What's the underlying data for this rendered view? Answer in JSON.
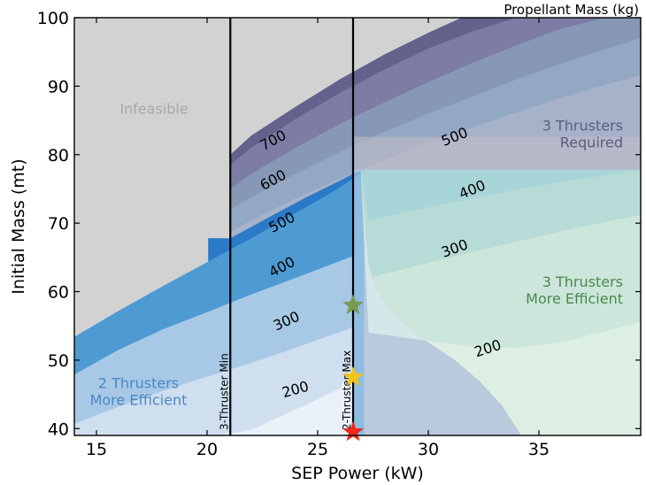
{
  "chart_data": {
    "type": "area",
    "xlabel": "SEP Power (kW)",
    "ylabel": "Initial Mass (mt)",
    "xlim": [
      14,
      39.6
    ],
    "ylim": [
      39,
      100
    ],
    "xticks": [
      15,
      20,
      25,
      30,
      35
    ],
    "yticks": [
      40,
      50,
      60,
      70,
      80,
      90,
      100
    ],
    "grid": false,
    "top_note": "Propellant Mass (kg)",
    "vertical_lines": [
      {
        "x": 21.05,
        "label": "3-Thruster Min"
      },
      {
        "x": 26.6,
        "label": "2-Thruster Max"
      }
    ],
    "region_labels": [
      {
        "text": [
          "Infeasible"
        ],
        "x": 17.6,
        "y": 86,
        "color": "#a8a8a8",
        "anchor": "middle"
      },
      {
        "text": [
          "3 Thrusters",
          "Required"
        ],
        "x": 38.8,
        "y": 83.5,
        "color": "#5c5c80",
        "anchor": "end"
      },
      {
        "text": [
          "3 Thrusters",
          "More Efficient"
        ],
        "x": 38.8,
        "y": 60.7,
        "color": "#4a8a4a",
        "anchor": "end"
      },
      {
        "text": [
          "2 Thrusters",
          "More Efficient"
        ],
        "x": 16.9,
        "y": 45.9,
        "color": "#4a86c6",
        "anchor": "middle"
      }
    ],
    "contour_labels": [
      {
        "text": "700",
        "x": 23.0,
        "y": 82.0,
        "angle": -28
      },
      {
        "text": "600",
        "x": 23.0,
        "y": 76.2,
        "angle": -28
      },
      {
        "text": "500",
        "x": 23.4,
        "y": 70.0,
        "angle": -28
      },
      {
        "text": "400",
        "x": 23.4,
        "y": 63.5,
        "angle": -28
      },
      {
        "text": "300",
        "x": 23.6,
        "y": 55.6,
        "angle": -24
      },
      {
        "text": "200",
        "x": 24.0,
        "y": 45.6,
        "angle": -16
      },
      {
        "text": "500",
        "x": 31.2,
        "y": 82.5,
        "angle": -22
      },
      {
        "text": "400",
        "x": 32.0,
        "y": 74.8,
        "angle": -22
      },
      {
        "text": "300",
        "x": 31.2,
        "y": 66.2,
        "angle": -20
      },
      {
        "text": "200",
        "x": 32.7,
        "y": 51.6,
        "angle": -18
      }
    ],
    "markers": [
      {
        "x": 26.6,
        "y": 58.0,
        "color": "#7a9a52"
      },
      {
        "x": 26.6,
        "y": 47.5,
        "color": "#f2c318"
      },
      {
        "x": 26.6,
        "y": 39.5,
        "color": "#ee2a1c"
      }
    ],
    "regions": {
      "background": "#d2d2d2",
      "bands_2thruster": [
        {
          "color": "#eaf1f9",
          "upper": [
            [
              14,
              36
            ],
            [
              18,
              37.6
            ],
            [
              22,
              39.8
            ],
            [
              26,
              45.8
            ],
            [
              26.6,
              49.3
            ]
          ]
        },
        {
          "color": "#cfdff0",
          "upper": [
            [
              14,
              40.7
            ],
            [
              16,
              43.2
            ],
            [
              18,
              45.5
            ],
            [
              20,
              47.6
            ],
            [
              22,
              49.6
            ],
            [
              24,
              51.8
            ],
            [
              26.6,
              54.8
            ]
          ]
        },
        {
          "color": "#a7c9e6",
          "upper": [
            [
              14,
              47.9
            ],
            [
              16,
              51.5
            ],
            [
              18,
              54.5
            ],
            [
              20,
              57.0
            ],
            [
              22,
              59.6
            ],
            [
              24,
              62.0
            ],
            [
              26.6,
              65.2
            ]
          ]
        },
        {
          "color": "#4e9bd4",
          "upper": [
            [
              14,
              53.4
            ],
            [
              16,
              57.2
            ],
            [
              18,
              60.8
            ],
            [
              20,
              64.3
            ],
            [
              22,
              67.8
            ],
            [
              24,
              71.5
            ],
            [
              25.5,
              74.2
            ],
            [
              26.6,
              76.5
            ],
            [
              27.1,
              77.8
            ]
          ]
        },
        {
          "color": "#2a7ac8",
          "upper": [
            [
              21.05,
              67.8
            ],
            [
              23,
              71.2
            ],
            [
              24.5,
              73.8
            ],
            [
              26.0,
              76.2
            ],
            [
              26.6,
              77.2
            ],
            [
              27.1,
              77.8
            ]
          ]
        }
      ],
      "bands_3thruster": [
        {
          "color": "#62628c",
          "upper": [
            [
              21.05,
              80.0
            ],
            [
              22,
              82.8
            ],
            [
              24,
              87.0
            ],
            [
              26,
              91.0
            ],
            [
              28,
              94.6
            ],
            [
              30,
              97.8
            ],
            [
              31.5,
              100
            ]
          ]
        },
        {
          "color": "#7c7ca4",
          "upper": [
            [
              21.05,
              78.5
            ],
            [
              22,
              81.0
            ],
            [
              24,
              85.2
            ],
            [
              26,
              89.0
            ],
            [
              28,
              92.4
            ],
            [
              30,
              95.5
            ],
            [
              32,
              98.0
            ],
            [
              34,
              100
            ]
          ]
        },
        {
          "color": "#8698b6",
          "upper": [
            [
              21.05,
              75.0
            ],
            [
              22,
              77.2
            ],
            [
              24,
              81.0
            ],
            [
              26,
              84.5
            ],
            [
              28,
              87.6
            ],
            [
              30,
              90.6
            ],
            [
              32,
              93.4
            ],
            [
              34,
              96.0
            ],
            [
              36,
              98.4
            ],
            [
              38,
              100
            ],
            [
              39.6,
              100
            ]
          ]
        },
        {
          "color": "#93a8c2",
          "upper": [
            [
              21.05,
              72.0
            ],
            [
              22,
              73.8
            ],
            [
              24,
              77.2
            ],
            [
              26,
              80.4
            ],
            [
              28,
              83.3
            ],
            [
              30,
              86.0
            ],
            [
              32,
              88.5
            ],
            [
              34,
              91.0
            ],
            [
              36,
              93.3
            ],
            [
              38,
              95.4
            ],
            [
              39.6,
              97.0
            ]
          ]
        },
        {
          "color": "#a6b2c8",
          "upper": [
            [
              21.05,
              68.7
            ],
            [
              22,
              70.4
            ],
            [
              24,
              73.6
            ],
            [
              26,
              76.5
            ],
            [
              28,
              79.2
            ],
            [
              30,
              81.7
            ],
            [
              32,
              84.0
            ],
            [
              34,
              86.2
            ],
            [
              36,
              88.3
            ],
            [
              38,
              90.2
            ],
            [
              39.6,
              91.6
            ]
          ]
        }
      ],
      "tan_region": {
        "color": "#c4bec8",
        "x_start": 26.6,
        "y_top_cut": 77.8
      },
      "green_bands": [
        {
          "color": "#a8d6d8",
          "upper": [
            [
              26.6,
              77.8
            ],
            [
              39.6,
              77.8
            ]
          ]
        },
        {
          "color": "#b7dbd6",
          "upper": [
            [
              27.3,
              70.4
            ],
            [
              30,
              72.3
            ],
            [
              32,
              73.6
            ],
            [
              34,
              74.9
            ],
            [
              36,
              76.0
            ],
            [
              38,
              77.0
            ],
            [
              39.6,
              77.8
            ]
          ]
        },
        {
          "color": "#cce6db",
          "upper": [
            [
              27.3,
              62.0
            ],
            [
              30,
              64.2
            ],
            [
              32,
              65.8
            ],
            [
              34,
              67.3
            ],
            [
              36,
              68.8
            ],
            [
              38,
              70.2
            ],
            [
              39.6,
              71.2
            ]
          ]
        },
        {
          "color": "#dcefe2",
          "upper": [
            [
              27.3,
              54.0
            ],
            [
              30,
              52.8
            ],
            [
              32,
              52.0
            ],
            [
              34,
              51.8
            ],
            [
              36,
              52.6
            ],
            [
              38,
              54.2
            ],
            [
              39.6,
              55.6
            ]
          ]
        }
      ],
      "boundary_3vs2": [
        [
          26.95,
          77.8
        ],
        [
          27.1,
          70.0
        ],
        [
          27.3,
          64.0
        ],
        [
          27.6,
          60.5
        ],
        [
          28.2,
          57.5
        ],
        [
          29.0,
          55.0
        ],
        [
          30.0,
          52.6
        ],
        [
          31.2,
          50.0
        ],
        [
          32.3,
          47.0
        ],
        [
          33.3,
          43.5
        ],
        [
          34.2,
          39.0
        ]
      ]
    }
  }
}
